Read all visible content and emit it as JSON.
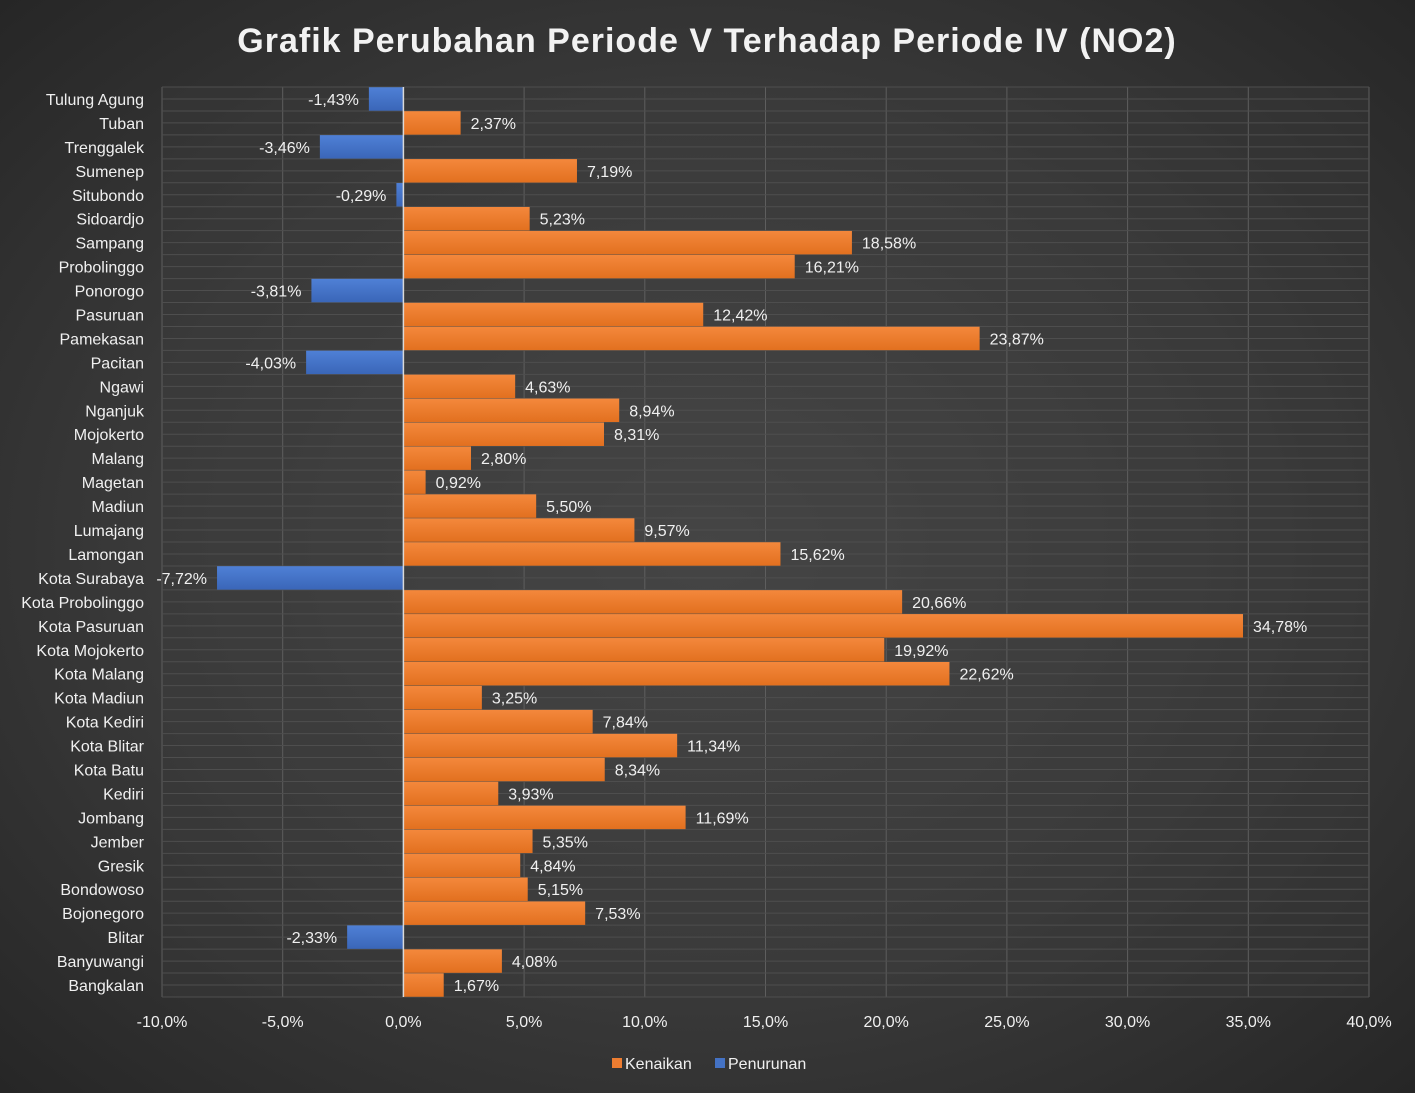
{
  "chart_data": {
    "type": "bar",
    "orientation": "horizontal",
    "title": "Grafik Perubahan Periode V Terhadap Periode IV (NO2)",
    "categories": [
      "Tulung Agung",
      "Tuban",
      "Trenggalek",
      "Sumenep",
      "Situbondo",
      "Sidoardjo",
      "Sampang",
      "Probolinggo",
      "Ponorogo",
      "Pasuruan",
      "Pamekasan",
      "Pacitan",
      "Ngawi",
      "Nganjuk",
      "Mojokerto",
      "Malang",
      "Magetan",
      "Madiun",
      "Lumajang",
      "Lamongan",
      "Kota Surabaya",
      "Kota Probolinggo",
      "Kota Pasuruan",
      "Kota Mojokerto",
      "Kota Malang",
      "Kota Madiun",
      "Kota Kediri",
      "Kota Blitar",
      "Kota Batu",
      "Kediri",
      "Jombang",
      "Jember",
      "Gresik",
      "Bondowoso",
      "Bojonegoro",
      "Blitar",
      "Banyuwangi",
      "Bangkalan"
    ],
    "values": [
      -1.43,
      2.37,
      -3.46,
      7.19,
      -0.29,
      5.23,
      18.58,
      16.21,
      -3.81,
      12.42,
      23.87,
      -4.03,
      4.63,
      8.94,
      8.31,
      2.8,
      0.92,
      5.5,
      9.57,
      15.62,
      -7.72,
      20.66,
      34.78,
      19.92,
      22.62,
      3.25,
      7.84,
      11.34,
      8.34,
      3.93,
      11.69,
      5.35,
      4.84,
      5.15,
      7.53,
      -2.33,
      4.08,
      1.67
    ],
    "value_labels": [
      "-1,43%",
      "2,37%",
      "-3,46%",
      "7,19%",
      "-0,29%",
      "5,23%",
      "18,58%",
      "16,21%",
      "-3,81%",
      "12,42%",
      "23,87%",
      "-4,03%",
      "4,63%",
      "8,94%",
      "8,31%",
      "2,80%",
      "0,92%",
      "5,50%",
      "9,57%",
      "15,62%",
      "-7,72%",
      "20,66%",
      "34,78%",
      "19,92%",
      "22,62%",
      "3,25%",
      "7,84%",
      "11,34%",
      "8,34%",
      "3,93%",
      "11,69%",
      "5,35%",
      "4,84%",
      "5,15%",
      "7,53%",
      "-2,33%",
      "4,08%",
      "1,67%"
    ],
    "series": [
      {
        "name": "Kenaikan",
        "color": "#ed7d31",
        "rule": "value >= 0"
      },
      {
        "name": "Penurunan",
        "color": "#4472c4",
        "rule": "value < 0"
      }
    ],
    "xlim": [
      -10,
      40
    ],
    "xticks": [
      -10,
      -5,
      0,
      5,
      10,
      15,
      20,
      25,
      30,
      35,
      40
    ],
    "xtick_labels": [
      "-10,0%",
      "-5,0%",
      "0,0%",
      "5,0%",
      "10,0%",
      "15,0%",
      "20,0%",
      "25,0%",
      "30,0%",
      "35,0%",
      "40,0%"
    ],
    "xlabel": "",
    "ylabel": "",
    "grid": true,
    "legend_position": "bottom"
  }
}
